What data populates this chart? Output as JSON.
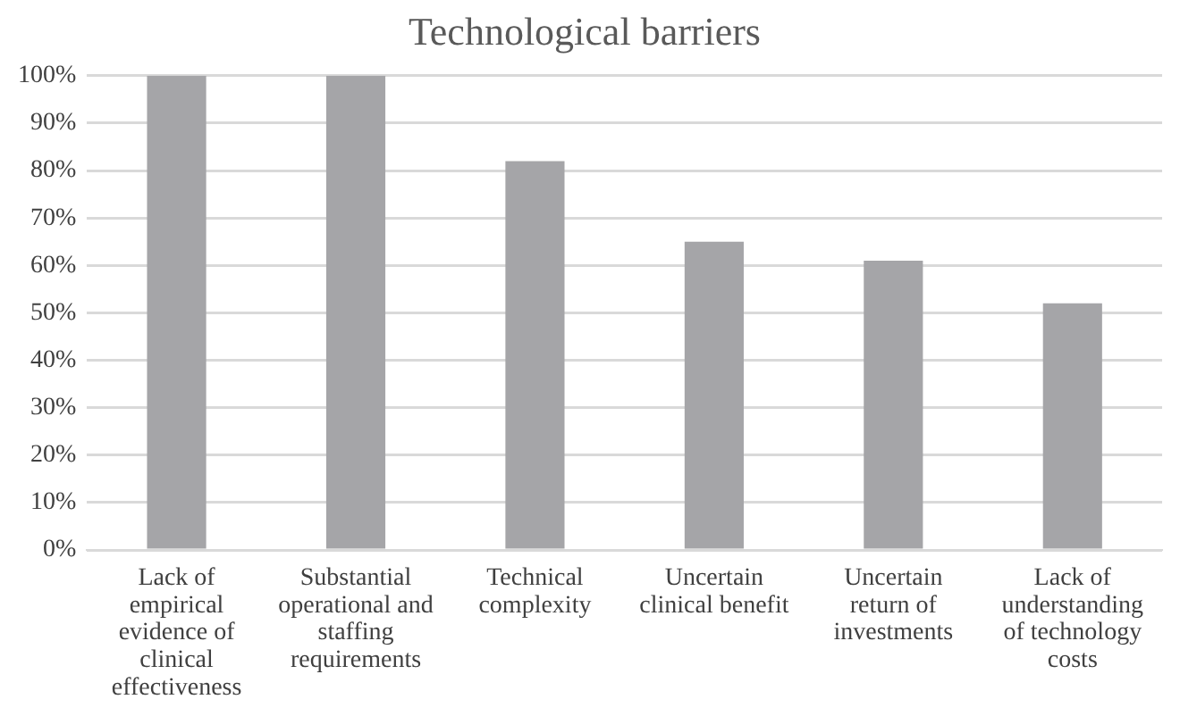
{
  "chart_data": {
    "type": "bar",
    "title": "Technological barriers",
    "categories": [
      "Lack of empirical evidence of clinical effectiveness",
      "Substantial operational and staffing requirements",
      "Technical complexity",
      "Uncertain clinical benefit",
      "Uncertain return of investments",
      "Lack of understanding of technology costs"
    ],
    "values": [
      100,
      100,
      82,
      65,
      61,
      52
    ],
    "color": "#a5a5a8",
    "ylim": [
      0,
      100
    ],
    "yticks": [
      {
        "value": 0,
        "label": "0%"
      },
      {
        "value": 10,
        "label": "10%"
      },
      {
        "value": 20,
        "label": "20%"
      },
      {
        "value": 30,
        "label": "30%"
      },
      {
        "value": 40,
        "label": "40%"
      },
      {
        "value": 50,
        "label": "50%"
      },
      {
        "value": 60,
        "label": "60%"
      },
      {
        "value": 70,
        "label": "70%"
      },
      {
        "value": 80,
        "label": "80%"
      },
      {
        "value": 90,
        "label": "90%"
      },
      {
        "value": 100,
        "label": "100%"
      }
    ],
    "grid": "y"
  }
}
